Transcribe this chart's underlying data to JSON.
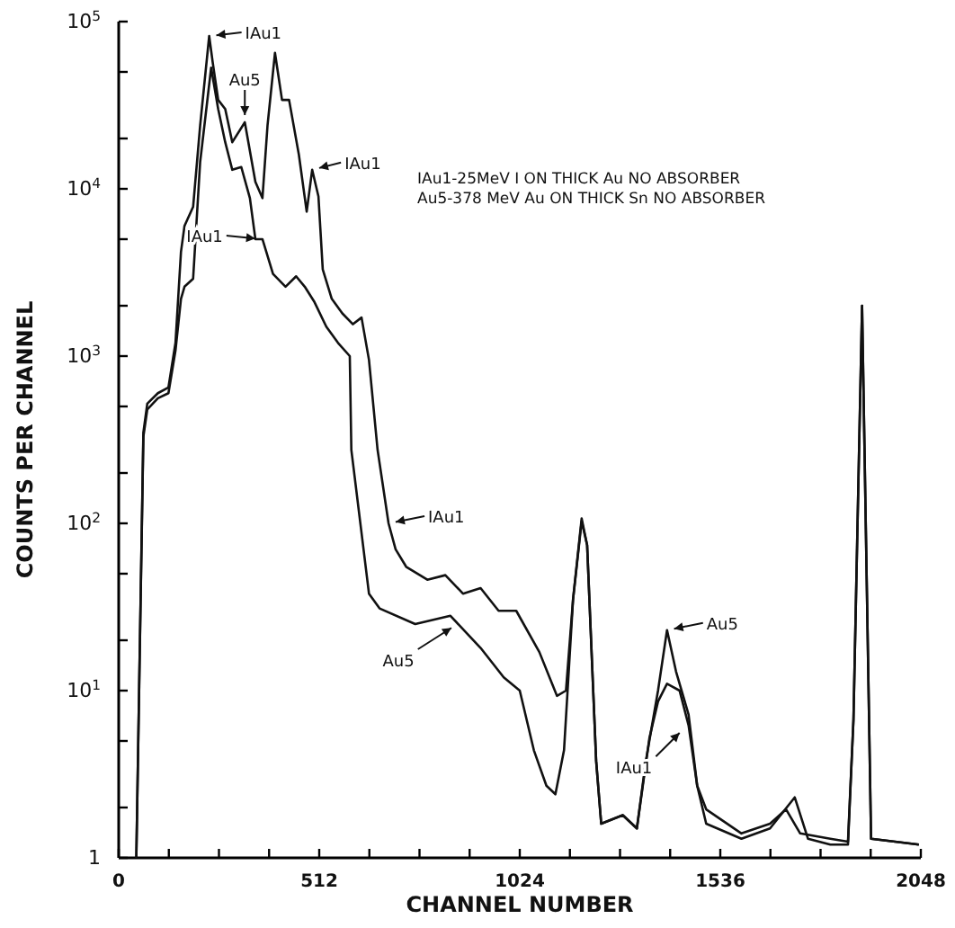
{
  "chart_data": {
    "type": "line",
    "xlabel": "CHANNEL NUMBER",
    "ylabel": "COUNTS PER CHANNEL",
    "log": true,
    "xlim": [
      0,
      2048
    ],
    "xticks": [
      0,
      {
        "value": 128,
        "label": null
      },
      {
        "value": 256,
        "label": null
      },
      {
        "value": 384,
        "label": null
      },
      512,
      {
        "value": 640,
        "label": null
      },
      {
        "value": 768,
        "label": null
      },
      {
        "value": 896,
        "label": null
      },
      1024,
      {
        "value": 1152,
        "label": null
      },
      {
        "value": 1280,
        "label": null
      },
      {
        "value": 1408,
        "label": null
      },
      1536,
      {
        "value": 1664,
        "label": null
      },
      {
        "value": 1792,
        "label": null
      },
      {
        "value": 1920,
        "label": null
      },
      2048
    ],
    "ylim": [
      1,
      100000
    ],
    "yticks": [
      1,
      {
        "value": 2,
        "label": null
      },
      {
        "value": 5,
        "label": null
      },
      {
        "value": 10,
        "label": "10$^{1}$"
      },
      {
        "value": 20,
        "label": null
      },
      {
        "value": 50,
        "label": null
      },
      {
        "value": 100,
        "label": "10$^{2}$"
      },
      {
        "value": 200,
        "label": null
      },
      {
        "value": 500,
        "label": null
      },
      {
        "value": 1000,
        "label": "10$^{3}$"
      },
      {
        "value": 2000,
        "label": null
      },
      {
        "value": 5000,
        "label": null
      },
      {
        "value": 10000,
        "label": "10$^{4}$"
      },
      {
        "value": 20000,
        "label": null
      },
      {
        "value": 50000,
        "label": null
      },
      {
        "value": 100000,
        "label": "10$^{5}$"
      }
    ],
    "series": [
      {
        "color": "#111111",
        "x": [
          45,
          63,
          73,
          100,
          127,
          145,
          159,
          168,
          190,
          208,
          231,
          240,
          254,
          272,
          290,
          322,
          349,
          367,
          380,
          399,
          417,
          435,
          460,
          480,
          494,
          510,
          521,
          544,
          571,
          598,
          620,
          639,
          661,
          689,
          707,
          734,
          788,
          834,
          879,
          924,
          970,
          1015,
          1074,
          1119,
          1142,
          1160,
          1182,
          1196,
          1219,
          1232,
          1287,
          1323,
          1346,
          1377,
          1400,
          1423,
          1455,
          1477,
          1500,
          1590,
          1663,
          1704,
          1740,
          1817,
          1862,
          1876,
          1898,
          1912,
          1921,
          2043
        ],
        "values": [
          1,
          350,
          520,
          600,
          650,
          1200,
          4200,
          6000,
          7800,
          24000,
          82000,
          57000,
          34000,
          30000,
          19000,
          25000,
          11000,
          8800,
          24000,
          65000,
          34000,
          34000,
          16000,
          7300,
          13000,
          9000,
          3300,
          2200,
          1800,
          1550,
          1700,
          950,
          275,
          100,
          70,
          55,
          46,
          49,
          38,
          41,
          30,
          30,
          17,
          9.3,
          10,
          35,
          107,
          74,
          3.8,
          1.6,
          1.8,
          1.5,
          3.8,
          10,
          23,
          13,
          7.2,
          2.7,
          1.95,
          1.4,
          1.6,
          1.95,
          1.4,
          1.3,
          1.25,
          6.7,
          2000,
          23,
          1.3,
          1.2
        ]
      },
      {
        "color": "#111111",
        "x": [
          45,
          63,
          73,
          100,
          127,
          145,
          159,
          168,
          190,
          208,
          236,
          254,
          272,
          290,
          313,
          335,
          349,
          367,
          394,
          426,
          453,
          475,
          500,
          530,
          560,
          590,
          594,
          639,
          666,
          757,
          847,
          924,
          983,
          1024,
          1060,
          1092,
          1115,
          1137,
          1160,
          1182,
          1196,
          1219,
          1232,
          1287,
          1323,
          1355,
          1377,
          1400,
          1432,
          1455,
          1477,
          1500,
          1590,
          1663,
          1726,
          1760,
          1817,
          1862,
          1876,
          1898,
          1912,
          1921,
          2043
        ],
        "values": [
          1,
          330,
          480,
          560,
          600,
          1080,
          2200,
          2600,
          2900,
          14500,
          53000,
          30000,
          19000,
          13000,
          13500,
          8800,
          5000,
          5000,
          3100,
          2600,
          3000,
          2600,
          2100,
          1500,
          1200,
          1000,
          275,
          38,
          31,
          25,
          28,
          18,
          12,
          10,
          4.4,
          2.7,
          2.4,
          4.4,
          35,
          103,
          74,
          3.8,
          1.6,
          1.8,
          1.5,
          5.2,
          8.6,
          11,
          10,
          6.2,
          2.7,
          1.6,
          1.3,
          1.5,
          2.3,
          1.3,
          1.2,
          1.2,
          6.7,
          2000,
          23,
          1.3,
          1.2
        ]
      }
    ],
    "annotations": [
      {
        "text": "IAu1",
        "x": 231,
        "y": 82000
      },
      {
        "text": "Au5",
        "x": 322,
        "y": 25000
      },
      {
        "text": "IAu1",
        "x": 494,
        "y": 13000
      },
      {
        "text": "IAu1",
        "x": 367,
        "y": 5000
      },
      {
        "text": "IAu1",
        "x": 689,
        "y": 100
      },
      {
        "text": "Au5",
        "x": 865,
        "y": 25
      },
      {
        "text": "Au5",
        "x": 1400,
        "y": 23
      },
      {
        "text": "IAu1",
        "x": 1445,
        "y": 6
      },
      "IAu1-25MeV I ON THICK Au NO ABSORBER",
      "Au5-378 MeV Au ON THICK Sn NO ABSORBER"
    ]
  }
}
